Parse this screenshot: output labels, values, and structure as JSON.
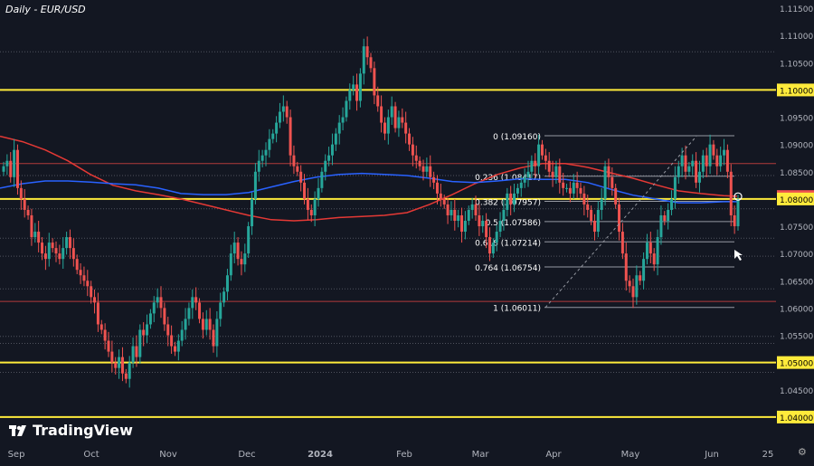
{
  "title": "Daily - EUR/USD",
  "brand": "TradingView",
  "colors": {
    "background": "#131722",
    "up": "#26a69a",
    "down": "#ef5350",
    "sma_red": "#e53935",
    "sma_blue": "#2962ff",
    "yellow": "#ffeb3b",
    "axis_text": "#b2b5be",
    "grid_dotted": "#50535e"
  },
  "chart_data": {
    "type": "candlestick",
    "symbol": "EUR/USD",
    "timeframe": "Daily",
    "ylim": [
      1.0355,
      1.1165
    ],
    "y_ticks": [
      "1.11500",
      "1.11000",
      "1.10500",
      "1.10000",
      "1.09500",
      "1.09000",
      "1.08500",
      "1.08045",
      "1.08000",
      "1.07500",
      "1.07000",
      "1.06500",
      "1.06000",
      "1.05500",
      "1.05000",
      "1.04500",
      "1.04000"
    ],
    "x_ticks": [
      "Sep",
      "Oct",
      "Nov",
      "Dec",
      "2024",
      "Feb",
      "Mar",
      "Apr",
      "May",
      "Jun",
      "25"
    ],
    "current_price": 1.08045,
    "key_levels_yellow": [
      1.1,
      1.08,
      1.05,
      1.04
    ],
    "horizontal_lines": [
      {
        "price": 1.107,
        "style": "dotted"
      },
      {
        "price": 1.0865,
        "style": "solid-red"
      },
      {
        "price": 1.0843,
        "style": "dotted"
      },
      {
        "price": 1.0782,
        "style": "dotted"
      },
      {
        "price": 1.0728,
        "style": "dotted"
      },
      {
        "price": 1.0695,
        "style": "dotted"
      },
      {
        "price": 1.0635,
        "style": "dotted"
      },
      {
        "price": 1.0612,
        "style": "solid-red"
      },
      {
        "price": 1.0548,
        "style": "dotted"
      },
      {
        "price": 1.0535,
        "style": "dotted"
      },
      {
        "price": 1.0482,
        "style": "dotted"
      }
    ],
    "fibonacci": [
      {
        "label": "0 (1.09160)",
        "price": 1.0916
      },
      {
        "label": "0.236 (1.08417)",
        "price": 1.08417
      },
      {
        "label": "0.382 (1.07957)",
        "price": 1.07957
      },
      {
        "label": "0.5 (1.07586)",
        "price": 1.07586
      },
      {
        "label": "0.618 (1.07214)",
        "price": 1.07214
      },
      {
        "label": "0.764 (1.06754)",
        "price": 1.06754
      },
      {
        "label": "1 (1.06011)",
        "price": 1.06011
      }
    ],
    "sma_red_points": [
      [
        0,
        1.0915
      ],
      [
        25,
        1.0905
      ],
      [
        50,
        1.089
      ],
      [
        75,
        1.087
      ],
      [
        100,
        1.0845
      ],
      [
        125,
        1.0825
      ],
      [
        150,
        1.0815
      ],
      [
        175,
        1.0808
      ],
      [
        200,
        1.08
      ],
      [
        225,
        1.079
      ],
      [
        250,
        1.078
      ],
      [
        275,
        1.077
      ],
      [
        300,
        1.0762
      ],
      [
        325,
        1.076
      ],
      [
        350,
        1.0762
      ],
      [
        375,
        1.0766
      ],
      [
        400,
        1.0768
      ],
      [
        425,
        1.077
      ],
      [
        450,
        1.0775
      ],
      [
        475,
        1.079
      ],
      [
        500,
        1.0808
      ],
      [
        525,
        1.0828
      ],
      [
        550,
        1.0845
      ],
      [
        575,
        1.0857
      ],
      [
        600,
        1.0865
      ],
      [
        625,
        1.0865
      ],
      [
        650,
        1.0858
      ],
      [
        675,
        1.0848
      ],
      [
        700,
        1.0838
      ],
      [
        725,
        1.0826
      ],
      [
        750,
        1.0815
      ],
      [
        775,
        1.081
      ],
      [
        800,
        1.0806
      ],
      [
        815,
        1.0805
      ]
    ],
    "sma_blue_points": [
      [
        0,
        1.082
      ],
      [
        25,
        1.0828
      ],
      [
        50,
        1.0833
      ],
      [
        75,
        1.0833
      ],
      [
        100,
        1.0831
      ],
      [
        125,
        1.0828
      ],
      [
        150,
        1.0826
      ],
      [
        175,
        1.082
      ],
      [
        200,
        1.081
      ],
      [
        225,
        1.0808
      ],
      [
        250,
        1.0808
      ],
      [
        275,
        1.0812
      ],
      [
        300,
        1.0822
      ],
      [
        325,
        1.0832
      ],
      [
        350,
        1.084
      ],
      [
        375,
        1.0845
      ],
      [
        400,
        1.0847
      ],
      [
        425,
        1.0845
      ],
      [
        450,
        1.0843
      ],
      [
        475,
        1.0838
      ],
      [
        500,
        1.0832
      ],
      [
        525,
        1.083
      ],
      [
        550,
        1.0833
      ],
      [
        575,
        1.0837
      ],
      [
        600,
        1.0836
      ],
      [
        625,
        1.0836
      ],
      [
        650,
        1.083
      ],
      [
        675,
        1.0818
      ],
      [
        700,
        1.0807
      ],
      [
        725,
        1.08
      ],
      [
        750,
        1.0793
      ],
      [
        775,
        1.0793
      ],
      [
        800,
        1.0795
      ],
      [
        815,
        1.0795
      ]
    ],
    "candles_close": [
      1.086,
      1.087,
      1.084,
      1.089,
      1.082,
      1.08,
      1.078,
      1.077,
      1.073,
      1.074,
      1.072,
      1.07,
      1.069,
      1.072,
      1.071,
      1.07,
      1.069,
      1.071,
      1.073,
      1.071,
      1.069,
      1.067,
      1.066,
      1.065,
      1.064,
      1.062,
      1.061,
      1.057,
      1.056,
      1.054,
      1.052,
      1.05,
      1.049,
      1.051,
      1.048,
      1.047,
      1.05,
      1.053,
      1.051,
      1.056,
      1.055,
      1.057,
      1.059,
      1.061,
      1.062,
      1.06,
      1.057,
      1.055,
      1.053,
      1.052,
      1.054,
      1.056,
      1.058,
      1.06,
      1.062,
      1.061,
      1.058,
      1.056,
      1.058,
      1.056,
      1.053,
      1.058,
      1.061,
      1.063,
      1.066,
      1.07,
      1.072,
      1.069,
      1.068,
      1.07,
      1.075,
      1.08,
      1.085,
      1.087,
      1.088,
      1.089,
      1.091,
      1.092,
      1.094,
      1.096,
      1.097,
      1.095,
      1.088,
      1.086,
      1.085,
      1.083,
      1.08,
      1.078,
      1.077,
      1.08,
      1.082,
      1.085,
      1.087,
      1.088,
      1.09,
      1.092,
      1.094,
      1.095,
      1.098,
      1.1,
      1.101,
      1.098,
      1.103,
      1.108,
      1.106,
      1.104,
      1.099,
      1.097,
      1.094,
      1.092,
      1.095,
      1.097,
      1.093,
      1.095,
      1.094,
      1.092,
      1.09,
      1.088,
      1.087,
      1.086,
      1.085,
      1.086,
      1.084,
      1.083,
      1.081,
      1.08,
      1.079,
      1.077,
      1.078,
      1.076,
      1.077,
      1.074,
      1.076,
      1.078,
      1.079,
      1.077,
      1.075,
      1.076,
      1.073,
      1.07,
      1.072,
      1.074,
      1.076,
      1.078,
      1.081,
      1.079,
      1.081,
      1.082,
      1.083,
      1.084,
      1.085,
      1.087,
      1.086,
      1.09,
      1.088,
      1.087,
      1.085,
      1.084,
      1.086,
      1.083,
      1.082,
      1.082,
      1.081,
      1.083,
      1.082,
      1.081,
      1.079,
      1.078,
      1.076,
      1.074,
      1.078,
      1.08,
      1.086,
      1.084,
      1.082,
      1.079,
      1.074,
      1.07,
      1.065,
      1.064,
      1.062,
      1.066,
      1.065,
      1.069,
      1.072,
      1.07,
      1.068,
      1.073,
      1.077,
      1.076,
      1.078,
      1.08,
      1.084,
      1.086,
      1.088,
      1.085,
      1.086,
      1.087,
      1.083,
      1.085,
      1.088,
      1.086,
      1.09,
      1.088,
      1.086,
      1.088,
      1.089,
      1.085,
      1.077,
      1.075,
      1.08
    ]
  }
}
